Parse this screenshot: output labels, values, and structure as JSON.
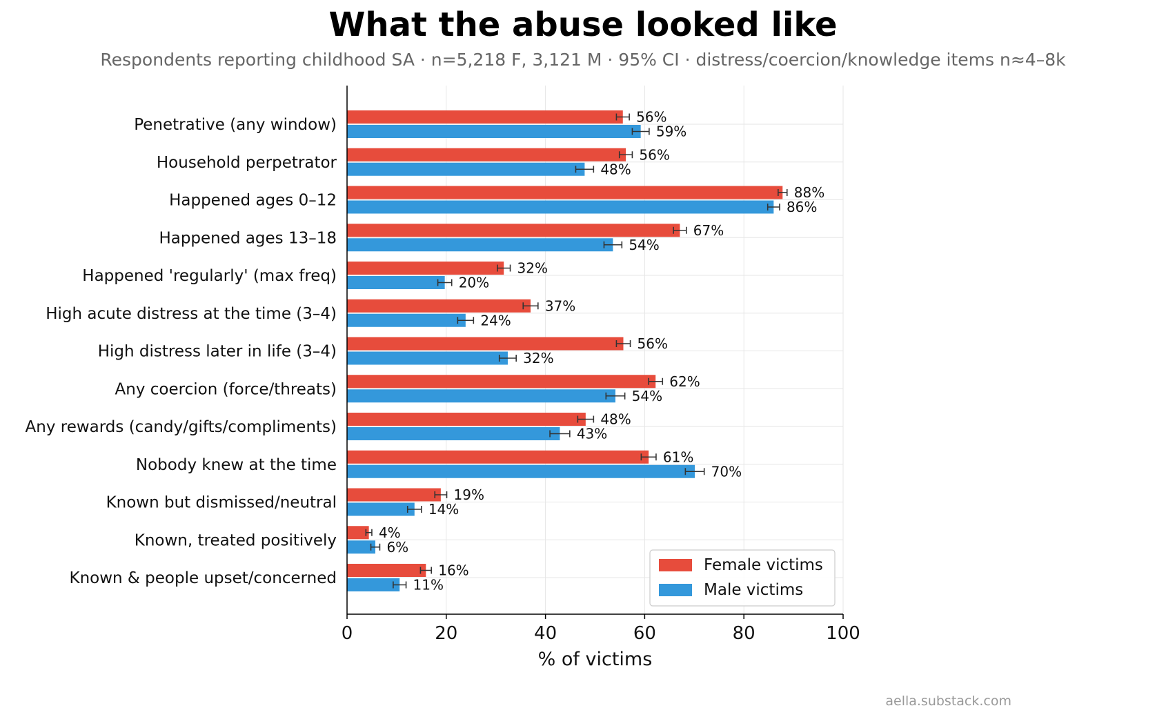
{
  "title": "What the abuse looked like",
  "subtitle": "Respondents reporting childhood SA · n=5,218 F, 3,121 M · 95% CI · distress/coercion/knowledge items n≈4–8k",
  "credit": "aella.substack.com",
  "colors": {
    "female": "#e74c3c",
    "male": "#3498db",
    "grid": "#e6e6e6",
    "errorbar": "#333333"
  },
  "chart_data": {
    "type": "bar",
    "orientation": "horizontal",
    "title": "What the abuse looked like",
    "xlabel": "% of victims",
    "xlim": [
      0,
      100
    ],
    "xticks": [
      0,
      20,
      40,
      60,
      80,
      100
    ],
    "grid": true,
    "legend_position": "bottom-right",
    "categories": [
      "Penetrative (any window)",
      "Household perpetrator",
      "Happened ages 0–12",
      "Happened ages 13–18",
      "Happened 'regularly' (max freq)",
      "High acute distress at the time (3–4)",
      "High distress later in life (3–4)",
      "Any coercion (force/threats)",
      "Any rewards (candy/gifts/compliments)",
      "Nobody knew at the time",
      "Known but dismissed/neutral",
      "Known, treated positively",
      "Known & people upset/concerned"
    ],
    "series": [
      {
        "name": "Female victims",
        "values": [
          55.6,
          56.2,
          87.8,
          67.1,
          31.6,
          37.0,
          55.7,
          62.2,
          48.1,
          60.8,
          18.9,
          4.4,
          15.9
        ],
        "labels": [
          "56%",
          "56%",
          "88%",
          "67%",
          "32%",
          "37%",
          "56%",
          "62%",
          "48%",
          "61%",
          "19%",
          "4%",
          "16%"
        ],
        "ci_half": [
          1.3,
          1.3,
          0.9,
          1.3,
          1.3,
          1.5,
          1.4,
          1.4,
          1.6,
          1.5,
          1.2,
          0.6,
          1.1
        ]
      },
      {
        "name": "Male victims",
        "values": [
          59.2,
          47.9,
          86.0,
          53.6,
          19.7,
          23.9,
          32.4,
          54.1,
          42.9,
          70.1,
          13.6,
          5.7,
          10.6
        ],
        "labels": [
          "59%",
          "48%",
          "86%",
          "54%",
          "20%",
          "24%",
          "32%",
          "54%",
          "43%",
          "70%",
          "14%",
          "6%",
          "11%"
        ],
        "ci_half": [
          1.7,
          1.8,
          1.2,
          1.8,
          1.4,
          1.6,
          1.7,
          1.9,
          2.0,
          1.9,
          1.4,
          0.9,
          1.3
        ]
      }
    ]
  }
}
